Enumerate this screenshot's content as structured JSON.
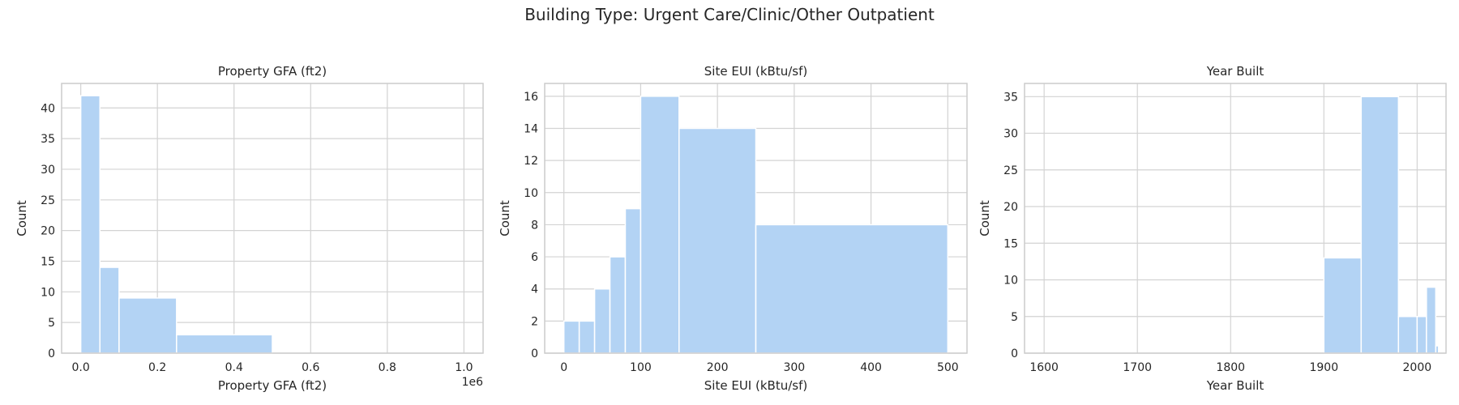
{
  "figure": {
    "title": "Building Type: Urgent Care/Clinic/Other Outpatient"
  },
  "colors": {
    "bar": "#b3d3f4",
    "grid": "#d3d3d3",
    "frame": "#cccccc",
    "text": "#262626"
  },
  "chart_data": [
    {
      "type": "bar",
      "title": "Property GFA (ft2)",
      "xlabel": "Property GFA (ft2)",
      "ylabel": "Count",
      "x_offset_label": "1e6",
      "xlim": [
        -0.05,
        1.05
      ],
      "ylim": [
        0,
        44
      ],
      "xticks": [
        0,
        0.2,
        0.4,
        0.6,
        0.8,
        1.0
      ],
      "xtick_labels": [
        "0.0",
        "0.2",
        "0.4",
        "0.6",
        "0.8",
        "1.0"
      ],
      "yticks": [
        0,
        5,
        10,
        15,
        20,
        25,
        30,
        35,
        40
      ],
      "yticks_labels": [
        "0",
        "5",
        "10",
        "15",
        "20",
        "25",
        "30",
        "35",
        "40"
      ],
      "bins": [
        {
          "x0": 0,
          "x1": 0.05,
          "count": 42
        },
        {
          "x0": 0.05,
          "x1": 0.1,
          "count": 14
        },
        {
          "x0": 0.1,
          "x1": 0.25,
          "count": 9
        },
        {
          "x0": 0.25,
          "x1": 0.5,
          "count": 3
        }
      ],
      "grid": true
    },
    {
      "type": "bar",
      "title": "Site EUI (kBtu/sf)",
      "xlabel": "Site EUI (kBtu/sf)",
      "ylabel": "Count",
      "xlim": [
        -25,
        525
      ],
      "ylim": [
        0,
        16.8
      ],
      "xticks": [
        0,
        100,
        200,
        300,
        400,
        500
      ],
      "xtick_labels": [
        "0",
        "100",
        "200",
        "300",
        "400",
        "500"
      ],
      "yticks": [
        0,
        2,
        4,
        6,
        8,
        10,
        12,
        14,
        16
      ],
      "yticks_labels": [
        "0",
        "2",
        "4",
        "6",
        "8",
        "10",
        "12",
        "14",
        "16"
      ],
      "bins": [
        {
          "x0": 0,
          "x1": 20,
          "count": 2
        },
        {
          "x0": 20,
          "x1": 40,
          "count": 2
        },
        {
          "x0": 40,
          "x1": 60,
          "count": 4
        },
        {
          "x0": 60,
          "x1": 80,
          "count": 6
        },
        {
          "x0": 80,
          "x1": 100,
          "count": 9
        },
        {
          "x0": 100,
          "x1": 150,
          "count": 16
        },
        {
          "x0": 150,
          "x1": 250,
          "count": 14
        },
        {
          "x0": 250,
          "x1": 500,
          "count": 8
        }
      ],
      "grid": true
    },
    {
      "type": "bar",
      "title": "Year Built",
      "xlabel": "Year Built",
      "ylabel": "Count",
      "xlim": [
        1579,
        2031
      ],
      "ylim": [
        0,
        36.8
      ],
      "xticks": [
        1600,
        1700,
        1800,
        1900,
        2000
      ],
      "xtick_labels": [
        "1600",
        "1700",
        "1800",
        "1900",
        "2000"
      ],
      "yticks": [
        0,
        5,
        10,
        15,
        20,
        25,
        30,
        35
      ],
      "yticks_labels": [
        "0",
        "5",
        "10",
        "15",
        "20",
        "25",
        "30",
        "35"
      ],
      "bins": [
        {
          "x0": 1600,
          "x1": 1900,
          "count": 0
        },
        {
          "x0": 1900,
          "x1": 1940,
          "count": 13
        },
        {
          "x0": 1940,
          "x1": 1980,
          "count": 35
        },
        {
          "x0": 1980,
          "x1": 2000,
          "count": 5
        },
        {
          "x0": 2000,
          "x1": 2010,
          "count": 5
        },
        {
          "x0": 2010,
          "x1": 2020,
          "count": 9
        },
        {
          "x0": 2020,
          "x1": 2023,
          "count": 1
        }
      ],
      "grid": true
    }
  ]
}
